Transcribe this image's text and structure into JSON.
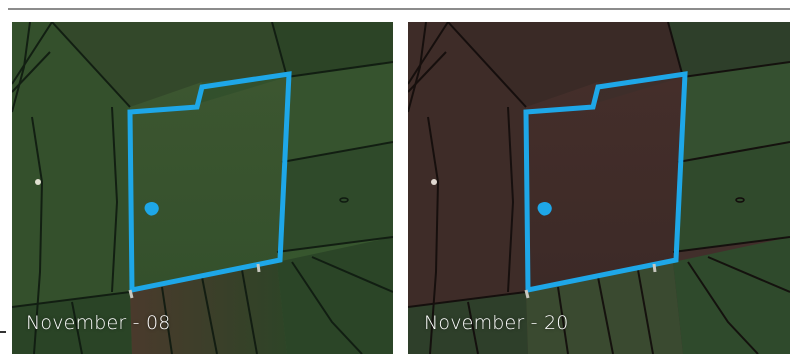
{
  "panels": [
    {
      "id": "left",
      "caption": "November - 08",
      "colors": {
        "field_fill": "#3a4f2c",
        "surround_fill": "#2f4a2a",
        "boundary": "#1ea7e8",
        "lines": "#0f1a10"
      }
    },
    {
      "id": "right",
      "caption": "November - 20",
      "colors": {
        "field_fill": "#3e2a28",
        "surround_fill": "#3a2c28",
        "boundary": "#1ea7e8",
        "lines": "#120c0b"
      }
    }
  ],
  "icons": {
    "marker": "blue-blob-marker"
  }
}
